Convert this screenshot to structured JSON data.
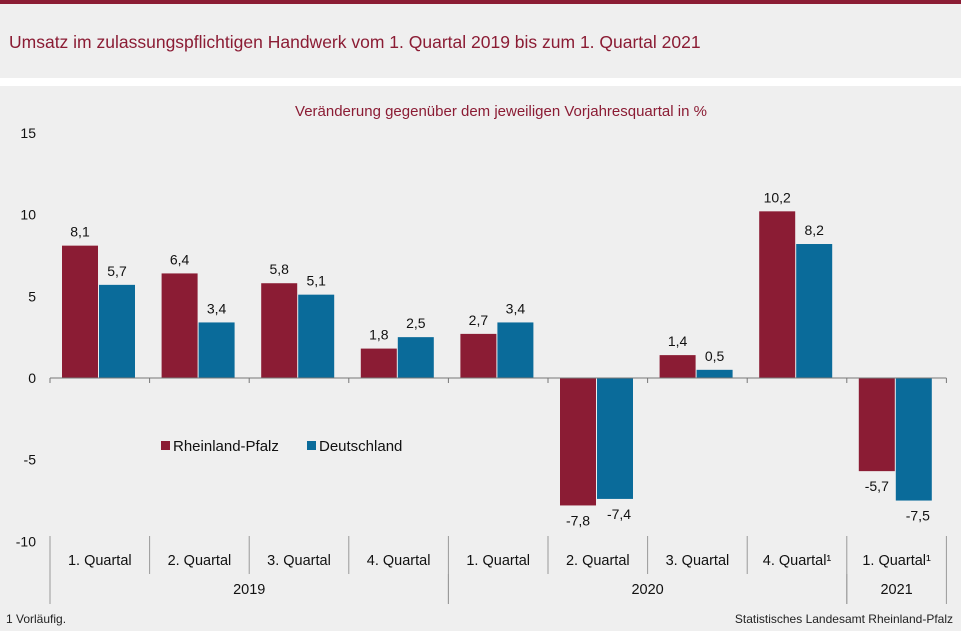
{
  "title": "Umsatz im zulassungspflichtigen Handwerk vom 1. Quartal 2019 bis zum 1. Quartal 2021",
  "footnote": "1 Vorläufig.",
  "source": "Statistisches Landesamt Rheinland-Pfalz",
  "colors": {
    "brand": "#8b1c34",
    "rheinland_pfalz": "#8b1c34",
    "deutschland": "#0a6b9a",
    "background": "#efefef"
  },
  "chart_data": {
    "type": "bar",
    "subtitle": "Veränderung gegenüber dem jeweiligen Vorjahresquartal in %",
    "categories": [
      "1. Quartal",
      "2. Quartal",
      "3. Quartal",
      "4. Quartal",
      "1. Quartal",
      "2. Quartal",
      "3. Quartal",
      "4. Quartal¹",
      "1. Quartal¹"
    ],
    "groups": [
      {
        "label": "2019",
        "count": 4
      },
      {
        "label": "2020",
        "count": 4
      },
      {
        "label": "2021",
        "count": 1
      }
    ],
    "series": [
      {
        "name": "Rheinland-Pfalz",
        "values": [
          8.1,
          6.4,
          5.8,
          1.8,
          2.7,
          -7.8,
          1.4,
          10.2,
          -5.7
        ],
        "labels": [
          "8,1",
          "6,4",
          "5,8",
          "1,8",
          "2,7",
          "-7,8",
          "1,4",
          "10,2",
          "-5,7"
        ]
      },
      {
        "name": "Deutschland",
        "values": [
          5.7,
          3.4,
          5.1,
          2.5,
          3.4,
          -7.4,
          0.5,
          8.2,
          -7.5
        ],
        "labels": [
          "5,7",
          "3,4",
          "5,1",
          "2,5",
          "3,4",
          "-7,4",
          "0,5",
          "8,2",
          "-7,5"
        ]
      }
    ],
    "yticks": [
      15,
      10,
      5,
      0,
      -5,
      -10
    ],
    "ytick_labels": [
      "15",
      "10",
      "5",
      "0",
      "-5",
      "-10"
    ],
    "ylim": [
      -10,
      15
    ],
    "legend_position": "center-left",
    "grid": false
  }
}
